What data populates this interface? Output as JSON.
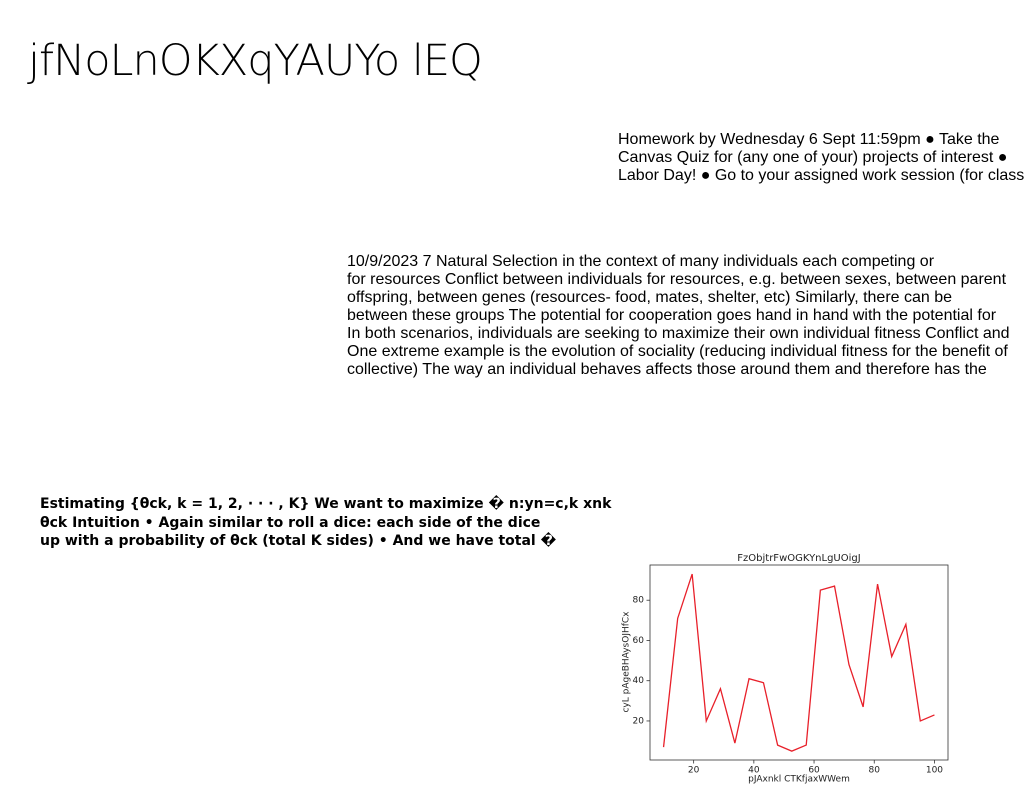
{
  "title": "jfNoLnOKXqYAUYo lEQ",
  "notice": {
    "lines": [
      "Homework by Wednesday 6 Sept 11:59pm ● Take the",
      "Canvas Quiz for (any one of your) projects of interest ●",
      "Labor Day! ● Go to your assigned work session (for class"
    ]
  },
  "paragraph": {
    "lines": [
      "10/9/2023 7 Natural Selection in the context of many individuals each competing or",
      "for resources Conflict between individuals for resources, e.g. between sexes, between parent",
      "offspring, between genes (resources- food, mates, shelter, etc) Similarly, there can be",
      "between these groups The potential for cooperation goes hand in hand with the potential for",
      "In both scenarios, individuals are seeking to maximize their own individual fitness Conflict and",
      "One extreme example is the evolution of sociality (reducing individual fitness for the benefit of",
      "collective) The way an individual behaves affects those around them and therefore has the"
    ]
  },
  "slide": {
    "lines": [
      "Estimating {θck, k = 1, 2, · · · , K} We want to maximize � n:yn=c,k xnk",
      "θck Intuition • Again similar to roll a dice: each side of the dice",
      "up with a probability of θck (total K sides) • And we have total �"
    ]
  },
  "chart_data": {
    "type": "line",
    "title": "FzObjtrFwOGKYnLgUOigJ",
    "xlabel": "pJAxnkl CTKfjaxWWem",
    "ylabel": "cyL pAgeBHAysOJHfCx",
    "x": [
      10,
      14.7,
      19.5,
      24.2,
      28.9,
      33.7,
      38.4,
      43.2,
      47.9,
      52.6,
      57.4,
      62.1,
      66.8,
      71.6,
      76.3,
      81.1,
      85.8,
      90.5,
      95.3,
      100
    ],
    "values": [
      7,
      71,
      93,
      20,
      36,
      9,
      41,
      39,
      8,
      5,
      8,
      85,
      87,
      48,
      27,
      88,
      52,
      68,
      20,
      23
    ],
    "color": "#e8202a",
    "xlim": [
      5.5,
      104.5
    ],
    "ylim": [
      0.6,
      97.5
    ],
    "xticks": [
      20,
      40,
      60,
      80,
      100
    ],
    "yticks": [
      20,
      40,
      60,
      80
    ]
  }
}
